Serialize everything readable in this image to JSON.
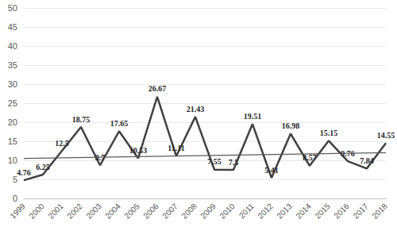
{
  "chart_data": {
    "type": "line",
    "categories": [
      "1999",
      "2000",
      "2001",
      "2002",
      "2003",
      "2004",
      "2005",
      "2006",
      "2007",
      "2008",
      "2009",
      "2010",
      "2011",
      "2012",
      "2013",
      "2014",
      "2015",
      "2016",
      "2017",
      "2018"
    ],
    "values": [
      4.76,
      6.25,
      12.5,
      18.75,
      8.7,
      17.65,
      10.53,
      26.67,
      11.11,
      21.43,
      7.55,
      7.5,
      19.51,
      5.41,
      16.98,
      8.57,
      15.15,
      9.76,
      7.84,
      14.55
    ],
    "trendline": [
      10.5,
      12.0
    ],
    "color": "#404040",
    "ylim": [
      0,
      50
    ],
    "yticks": [
      0,
      5,
      10,
      15,
      20,
      25,
      30,
      35,
      40,
      45,
      50
    ],
    "grid": true,
    "data_labels": true
  }
}
